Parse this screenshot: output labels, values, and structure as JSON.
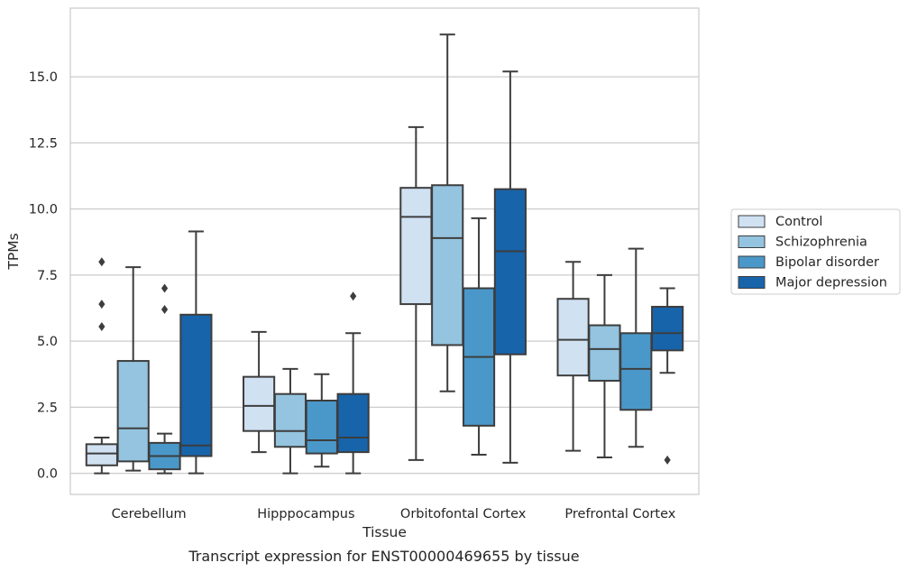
{
  "chart_data": {
    "type": "box",
    "title": "",
    "caption": "Transcript expression for ENST00000469655 by tissue",
    "xlabel": "Tissue",
    "ylabel": "TPMs",
    "ylim": [
      -0.8,
      17.6
    ],
    "yticks": [
      0.0,
      2.5,
      5.0,
      7.5,
      10.0,
      12.5,
      15.0
    ],
    "ytick_labels": [
      "0.0",
      "2.5",
      "5.0",
      "7.5",
      "10.0",
      "12.5",
      "15.0"
    ],
    "grid": "horizontal",
    "legend_position": "right",
    "categories": [
      "Cerebellum",
      "Hipppocampus",
      "Orbitofontal Cortex",
      "Prefrontal Cortex"
    ],
    "series": [
      {
        "name": "Control",
        "color": "#d0e1f2",
        "boxes": [
          {
            "whisker_low": 0.0,
            "q1": 0.3,
            "median": 0.75,
            "q3": 1.1,
            "whisker_high": 1.35,
            "outliers": [
              5.55,
              6.4,
              8.0
            ]
          },
          {
            "whisker_low": 0.8,
            "q1": 1.6,
            "median": 2.55,
            "q3": 3.65,
            "whisker_high": 5.35,
            "outliers": []
          },
          {
            "whisker_low": 0.5,
            "q1": 6.4,
            "median": 9.7,
            "q3": 10.8,
            "whisker_high": 13.1,
            "outliers": []
          },
          {
            "whisker_low": 0.85,
            "q1": 3.7,
            "median": 5.05,
            "q3": 6.6,
            "whisker_high": 8.0,
            "outliers": []
          }
        ]
      },
      {
        "name": "Schizophrenia",
        "color": "#94c4df",
        "boxes": [
          {
            "whisker_low": 0.1,
            "q1": 0.45,
            "median": 1.7,
            "q3": 4.25,
            "whisker_high": 7.8,
            "outliers": []
          },
          {
            "whisker_low": 0.0,
            "q1": 1.0,
            "median": 1.6,
            "q3": 3.0,
            "whisker_high": 3.95,
            "outliers": []
          },
          {
            "whisker_low": 3.1,
            "q1": 4.85,
            "median": 8.9,
            "q3": 10.9,
            "whisker_high": 16.6,
            "outliers": []
          },
          {
            "whisker_low": 0.6,
            "q1": 3.5,
            "median": 4.7,
            "q3": 5.6,
            "whisker_high": 7.5,
            "outliers": []
          }
        ]
      },
      {
        "name": "Bipolar disorder",
        "color": "#4a98c9",
        "boxes": [
          {
            "whisker_low": 0.0,
            "q1": 0.15,
            "median": 0.65,
            "q3": 1.15,
            "whisker_high": 1.5,
            "outliers": [
              6.2,
              7.0
            ]
          },
          {
            "whisker_low": 0.25,
            "q1": 0.75,
            "median": 1.25,
            "q3": 2.75,
            "whisker_high": 3.75,
            "outliers": []
          },
          {
            "whisker_low": 0.7,
            "q1": 1.8,
            "median": 4.4,
            "q3": 7.0,
            "whisker_high": 9.65,
            "outliers": []
          },
          {
            "whisker_low": 1.0,
            "q1": 2.4,
            "median": 3.95,
            "q3": 5.3,
            "whisker_high": 8.5,
            "outliers": []
          }
        ]
      },
      {
        "name": "Major depression",
        "color": "#1764ab",
        "boxes": [
          {
            "whisker_low": 0.0,
            "q1": 0.65,
            "median": 1.05,
            "q3": 6.0,
            "whisker_high": 9.15,
            "outliers": []
          },
          {
            "whisker_low": 0.0,
            "q1": 0.8,
            "median": 1.35,
            "q3": 3.0,
            "whisker_high": 5.3,
            "outliers": [
              6.7
            ]
          },
          {
            "whisker_low": 0.4,
            "q1": 4.5,
            "median": 8.4,
            "q3": 10.75,
            "whisker_high": 15.2,
            "outliers": []
          },
          {
            "whisker_low": 3.8,
            "q1": 4.65,
            "median": 5.3,
            "q3": 6.3,
            "whisker_high": 7.0,
            "outliers": [
              0.5
            ]
          }
        ]
      }
    ]
  }
}
